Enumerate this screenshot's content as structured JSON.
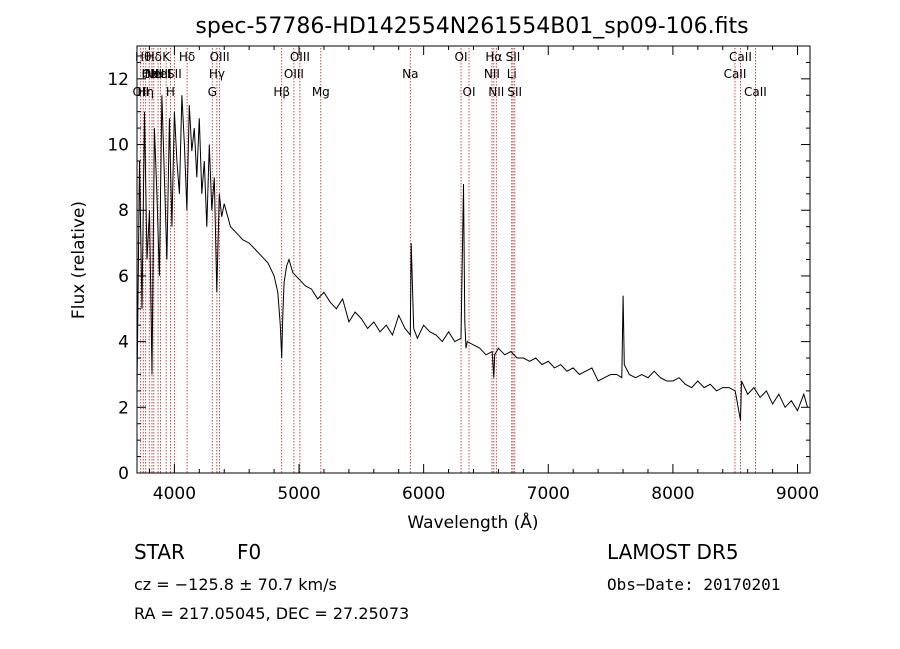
{
  "chart_data": {
    "type": "line",
    "title": "spec-57786-HD142554N261554B01_sp09-106.fits",
    "xlabel": "Wavelength (Å)",
    "ylabel": "Flux (relative)",
    "xlim": [
      3700,
      9100
    ],
    "ylim": [
      0,
      13
    ],
    "xticks": [
      4000,
      5000,
      6000,
      7000,
      8000,
      9000
    ],
    "yticks": [
      0,
      2,
      4,
      6,
      8,
      10,
      12
    ],
    "grid": false,
    "series": [
      {
        "x": [
          3700,
          3720,
          3740,
          3760,
          3780,
          3800,
          3820,
          3840,
          3860,
          3880,
          3900,
          3920,
          3940,
          3960,
          3980,
          4000,
          4020,
          4040,
          4060,
          4080,
          4100,
          4120,
          4140,
          4160,
          4180,
          4200,
          4220,
          4240,
          4260,
          4280,
          4300,
          4320,
          4340,
          4360,
          4380,
          4400,
          4450,
          4500,
          4550,
          4600,
          4650,
          4700,
          4750,
          4800,
          4830,
          4850,
          4861,
          4870,
          4880,
          4900,
          4920,
          4950,
          5000,
          5050,
          5100,
          5150,
          5200,
          5250,
          5300,
          5350,
          5400,
          5450,
          5500,
          5550,
          5600,
          5650,
          5700,
          5750,
          5800,
          5850,
          5893,
          5900,
          5920,
          5950,
          6000,
          6050,
          6100,
          6150,
          6200,
          6250,
          6300,
          6320,
          6330,
          6340,
          6350,
          6400,
          6450,
          6500,
          6550,
          6563,
          6570,
          6600,
          6650,
          6700,
          6750,
          6800,
          6850,
          6900,
          6950,
          7000,
          7050,
          7100,
          7150,
          7200,
          7250,
          7300,
          7350,
          7400,
          7450,
          7500,
          7550,
          7590,
          7600,
          7610,
          7650,
          7700,
          7750,
          7800,
          7850,
          7900,
          7950,
          8000,
          8050,
          8100,
          8150,
          8200,
          8250,
          8300,
          8350,
          8400,
          8450,
          8500,
          8542,
          8550,
          8600,
          8650,
          8700,
          8750,
          8800,
          8850,
          8900,
          8950,
          9000,
          9050,
          9080
        ],
        "y": [
          2.5,
          9.5,
          5.0,
          11.0,
          6.5,
          8.0,
          3.0,
          10.5,
          8.5,
          6.0,
          11.5,
          9.0,
          6.5,
          10.8,
          7.5,
          11.0,
          9.5,
          8.5,
          11.5,
          10.0,
          8.0,
          11.2,
          9.8,
          10.5,
          9.0,
          10.8,
          8.5,
          9.5,
          7.5,
          10.0,
          8.0,
          9.0,
          5.5,
          8.5,
          7.8,
          8.2,
          7.5,
          7.3,
          7.1,
          7.0,
          6.8,
          6.6,
          6.4,
          6.0,
          5.5,
          4.5,
          3.5,
          4.8,
          5.8,
          6.3,
          6.5,
          6.1,
          5.9,
          5.7,
          5.6,
          5.3,
          5.5,
          5.2,
          5.0,
          5.3,
          4.6,
          4.9,
          4.7,
          4.4,
          4.6,
          4.3,
          4.5,
          4.2,
          4.8,
          4.4,
          4.2,
          7.0,
          4.4,
          4.1,
          4.5,
          4.3,
          4.2,
          4.0,
          4.3,
          4.0,
          4.1,
          8.8,
          4.6,
          3.8,
          4.0,
          3.9,
          3.8,
          3.6,
          3.7,
          2.9,
          3.6,
          3.8,
          3.6,
          3.7,
          3.5,
          3.5,
          3.4,
          3.5,
          3.3,
          3.4,
          3.2,
          3.3,
          3.1,
          3.2,
          3.0,
          3.1,
          3.2,
          2.8,
          2.9,
          3.0,
          3.0,
          2.9,
          5.4,
          3.3,
          3.0,
          2.9,
          3.0,
          2.9,
          3.1,
          2.9,
          2.8,
          2.8,
          2.9,
          2.7,
          2.6,
          2.8,
          2.6,
          2.7,
          2.5,
          2.6,
          2.6,
          2.5,
          1.6,
          2.8,
          2.4,
          2.6,
          2.3,
          2.5,
          2.1,
          2.4,
          2.0,
          2.2,
          1.9,
          2.4,
          2.0
        ]
      }
    ],
    "lines": [
      {
        "x": 3730,
        "label": "OII",
        "row": 3
      },
      {
        "x": 3750,
        "label": "Hθ",
        "row": 1
      },
      {
        "x": 3770,
        "label": "Hη",
        "row": 3
      },
      {
        "x": 3798,
        "label": "Hε",
        "row": 2
      },
      {
        "x": 3820,
        "label": "OIII",
        "row": 2
      },
      {
        "x": 3835,
        "label": "Hδ",
        "row": 1
      },
      {
        "x": 3869,
        "label": "NeIII",
        "row": 2
      },
      {
        "x": 3889,
        "label": "HeI",
        "row": 2
      },
      {
        "x": 3934,
        "label": "K",
        "row": 1
      },
      {
        "x": 3968,
        "label": "H",
        "row": 3
      },
      {
        "x": 4000,
        "label": "SII",
        "row": 2
      },
      {
        "x": 4102,
        "label": "Hδ",
        "row": 1
      },
      {
        "x": 4304,
        "label": "G",
        "row": 3
      },
      {
        "x": 4341,
        "label": "Hγ",
        "row": 2
      },
      {
        "x": 4363,
        "label": "OIII",
        "row": 1
      },
      {
        "x": 4861,
        "label": "Hβ",
        "row": 3
      },
      {
        "x": 4959,
        "label": "OIII",
        "row": 2
      },
      {
        "x": 5007,
        "label": "OIII",
        "row": 1
      },
      {
        "x": 5175,
        "label": "Mg",
        "row": 3
      },
      {
        "x": 5893,
        "label": "Na",
        "row": 2
      },
      {
        "x": 6300,
        "label": "OI",
        "row": 1
      },
      {
        "x": 6364,
        "label": "OI",
        "row": 3
      },
      {
        "x": 6548,
        "label": "NII",
        "row": 2
      },
      {
        "x": 6563,
        "label": "Hα",
        "row": 1
      },
      {
        "x": 6583,
        "label": "NII",
        "row": 3
      },
      {
        "x": 6707,
        "label": "Li",
        "row": 2
      },
      {
        "x": 6717,
        "label": "SII",
        "row": 1
      },
      {
        "x": 6731,
        "label": "SII",
        "row": 3
      },
      {
        "x": 8498,
        "label": "CaII",
        "row": 2
      },
      {
        "x": 8542,
        "label": "CaII",
        "row": 1
      },
      {
        "x": 8662,
        "label": "CaII",
        "row": 3
      }
    ]
  },
  "info": {
    "class_label": "STAR",
    "subclass": "F0",
    "survey": "LAMOST DR5",
    "cz": "cz = −125.8 ± 70.7 km/s",
    "obs_date": "Obs−Date: 20170201",
    "coords": "RA = 217.05045, DEC =  27.25073"
  },
  "colors": {
    "spectrum": "#000000",
    "marker_lines": "#b22222"
  }
}
